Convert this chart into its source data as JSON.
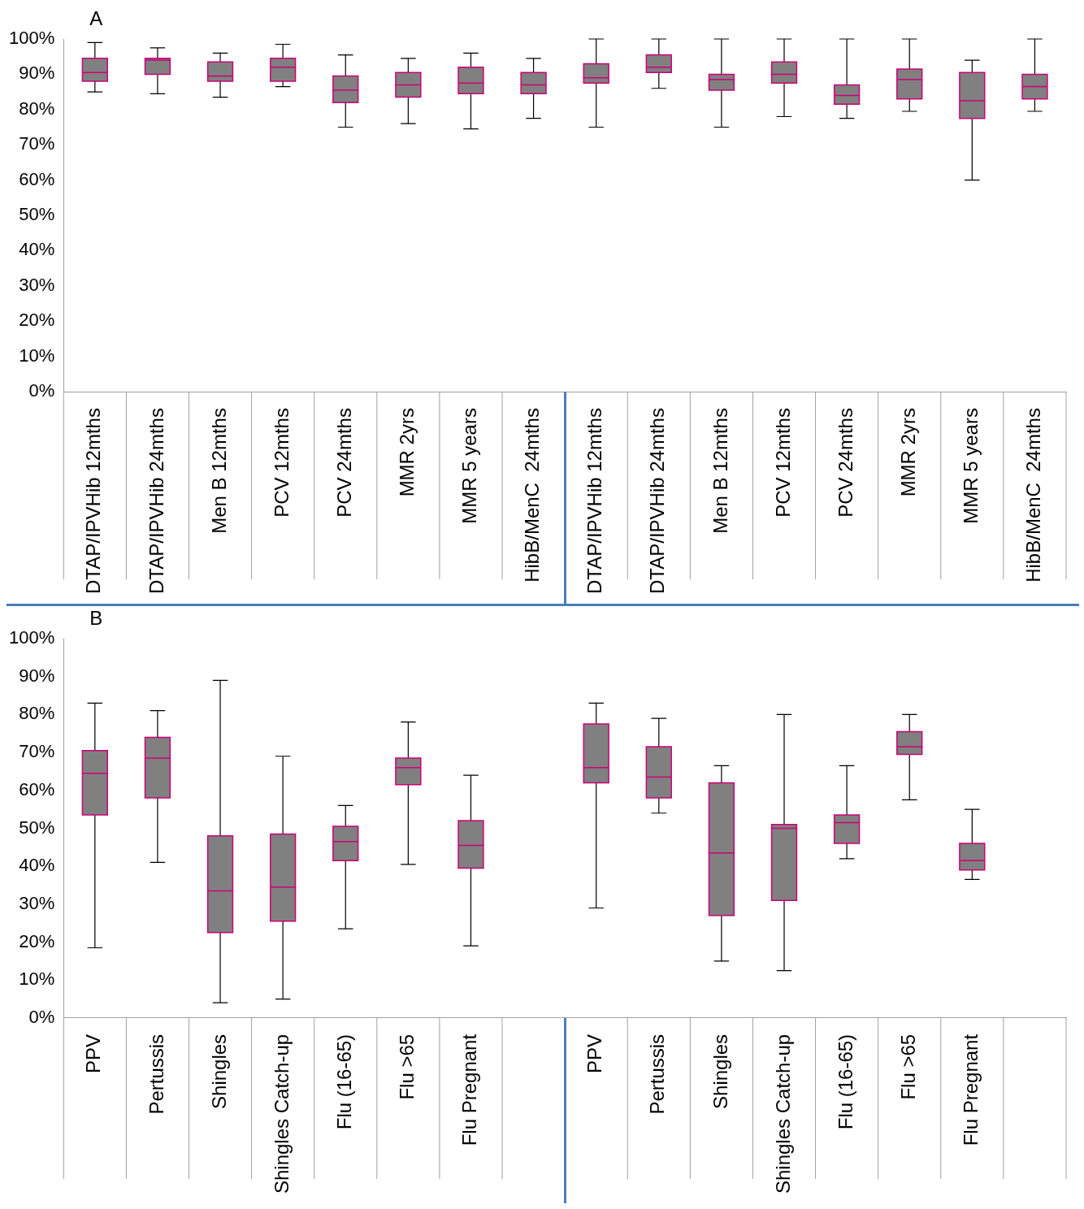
{
  "chart_data": [
    {
      "type": "box",
      "title": "A",
      "color": "#808080",
      "categories": [
        "DTAP/IPVHib 12mths",
        "DTAP/IPVHib 24mths",
        "Men B 12mths",
        "PCV 12mths",
        "PCV 24mths",
        "MMR 2yrs",
        "MMR 5 years",
        "HibB/MenC  24mths",
        "DTAP/IPVHib 12mths",
        "DTAP/IPVHib 24mths",
        "Men B 12mths",
        "PCV 12mths",
        "PCV 24mths",
        "MMR 2yrs",
        "MMR 5 years",
        "HibB/MenC  24mths"
      ],
      "boxes": [
        {
          "low": 85,
          "q1": 88,
          "median": 90.5,
          "q3": 94.5,
          "high": 99
        },
        {
          "low": 84.5,
          "q1": 90,
          "median": 94,
          "q3": 94.5,
          "high": 97.5
        },
        {
          "low": 83.5,
          "q1": 88,
          "median": 89.5,
          "q3": 93.5,
          "high": 96
        },
        {
          "low": 86.5,
          "q1": 88,
          "median": 92,
          "q3": 94.5,
          "high": 98.5
        },
        {
          "low": 75,
          "q1": 82,
          "median": 85.5,
          "q3": 89.5,
          "high": 95.5
        },
        {
          "low": 76,
          "q1": 83.5,
          "median": 87,
          "q3": 90.5,
          "high": 94.5
        },
        {
          "low": 74.5,
          "q1": 84.5,
          "median": 87.5,
          "q3": 92,
          "high": 96
        },
        {
          "low": 77.5,
          "q1": 84.5,
          "median": 87,
          "q3": 90.5,
          "high": 94.5
        },
        {
          "low": 75,
          "q1": 87.5,
          "median": 89,
          "q3": 93,
          "high": 100
        },
        {
          "low": 86,
          "q1": 90.5,
          "median": 92,
          "q3": 95.5,
          "high": 100
        },
        {
          "low": 75,
          "q1": 85.5,
          "median": 88.5,
          "q3": 90,
          "high": 100
        },
        {
          "low": 78,
          "q1": 87.5,
          "median": 90,
          "q3": 93.5,
          "high": 100
        },
        {
          "low": 77.5,
          "q1": 81.5,
          "median": 84,
          "q3": 87,
          "high": 100
        },
        {
          "low": 79.5,
          "q1": 83,
          "median": 88.5,
          "q3": 91.5,
          "high": 100
        },
        {
          "low": 60,
          "q1": 77.5,
          "median": 82.5,
          "q3": 90.5,
          "high": 94
        },
        {
          "low": 79.5,
          "q1": 83,
          "median": 86.5,
          "q3": 90,
          "high": 100
        }
      ],
      "ylim": [
        0,
        100
      ],
      "yticks": [
        {
          "value": 0,
          "label": "0%"
        },
        {
          "value": 10,
          "label": "10%"
        },
        {
          "value": 20,
          "label": "20%"
        },
        {
          "value": 30,
          "label": "30%"
        },
        {
          "value": 40,
          "label": "40%"
        },
        {
          "value": 50,
          "label": "50%"
        },
        {
          "value": 60,
          "label": "60%"
        },
        {
          "value": 70,
          "label": "70%"
        },
        {
          "value": 80,
          "label": "80%"
        },
        {
          "value": 90,
          "label": "90%"
        },
        {
          "value": 100,
          "label": "100%"
        }
      ]
    },
    {
      "type": "box",
      "title": "B",
      "color": "#808080",
      "categories": [
        "PPV",
        "Pertussis",
        "Shingles",
        "Shingles Catch-up",
        "Flu (16-65)",
        "Flu >65",
        "Flu Pregnant",
        null,
        "PPV",
        "Pertussis",
        "Shingles",
        "Shingles Catch-up",
        "Flu (16-65)",
        "Flu >65",
        "Flu Pregnant",
        null
      ],
      "boxes": [
        {
          "low": 18.5,
          "q1": 53.5,
          "median": 64.5,
          "q3": 70.5,
          "high": 83
        },
        {
          "low": 41,
          "q1": 58,
          "median": 68.5,
          "q3": 74,
          "high": 81
        },
        {
          "low": 4,
          "q1": 22.5,
          "median": 33.5,
          "q3": 48,
          "high": 89
        },
        {
          "low": 5,
          "q1": 25.5,
          "median": 34.5,
          "q3": 48.5,
          "high": 69
        },
        {
          "low": 23.5,
          "q1": 41.5,
          "median": 46.5,
          "q3": 50.5,
          "high": 56
        },
        {
          "low": 40.5,
          "q1": 61.5,
          "median": 66,
          "q3": 68.5,
          "high": 78
        },
        {
          "low": 19,
          "q1": 39.5,
          "median": 45.5,
          "q3": 52,
          "high": 64
        },
        null,
        {
          "low": 29,
          "q1": 62,
          "median": 66,
          "q3": 77.5,
          "high": 83
        },
        {
          "low": 54,
          "q1": 58,
          "median": 63.5,
          "q3": 71.5,
          "high": 79
        },
        {
          "low": 15,
          "q1": 27,
          "median": 43.5,
          "q3": 62,
          "high": 66.5
        },
        {
          "low": 12.5,
          "q1": 31,
          "median": 50,
          "q3": 51,
          "high": 80
        },
        {
          "low": 42,
          "q1": 46,
          "median": 51.5,
          "q3": 53.5,
          "high": 66.5
        },
        {
          "low": 57.5,
          "q1": 69.5,
          "median": 71.5,
          "q3": 75.5,
          "high": 80
        },
        {
          "low": 36.5,
          "q1": 39,
          "median": 41.5,
          "q3": 46,
          "high": 55
        },
        null
      ],
      "ylim": [
        0,
        100
      ],
      "yticks": [
        {
          "value": 0,
          "label": "0%"
        },
        {
          "value": 10,
          "label": "10%"
        },
        {
          "value": 20,
          "label": "20%"
        },
        {
          "value": 30,
          "label": "30%"
        },
        {
          "value": 40,
          "label": "40%"
        },
        {
          "value": 50,
          "label": "50%"
        },
        {
          "value": 60,
          "label": "60%"
        },
        {
          "value": 70,
          "label": "70%"
        },
        {
          "value": 80,
          "label": "80%"
        },
        {
          "value": 90,
          "label": "90%"
        },
        {
          "value": 100,
          "label": "100%"
        }
      ]
    }
  ]
}
